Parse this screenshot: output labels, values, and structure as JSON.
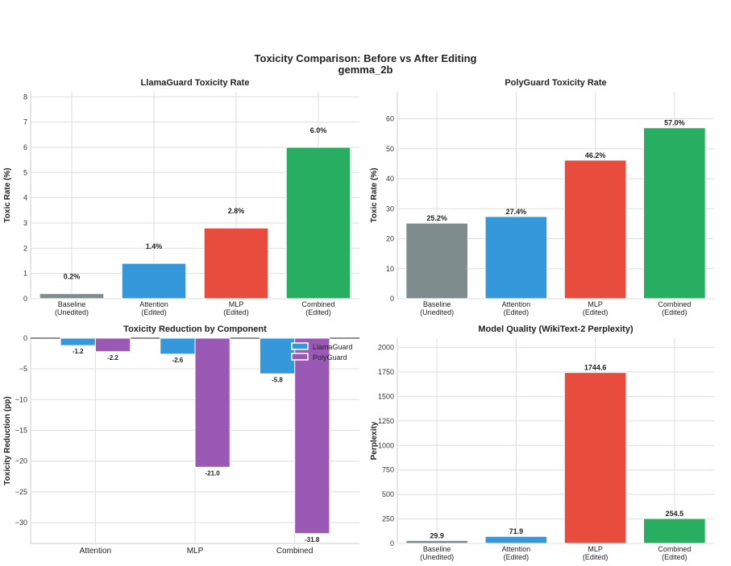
{
  "figure": {
    "title_line1": "Toxicity Comparison: Before vs After Editing",
    "title_line2": "gemma_2b"
  },
  "colors": {
    "baseline": "#7f8c8d",
    "attention": "#3498db",
    "mlp": "#e74c3c",
    "combined": "#27ae60",
    "llamaguard": "#3498db",
    "polyguard": "#9b59b6"
  },
  "chart_data": [
    {
      "id": "llamaguard",
      "type": "bar",
      "title": "LlamaGuard Toxicity Rate",
      "xlabel": "",
      "ylabel": "Toxic Rate (%)",
      "categories": [
        "Baseline\n(Unedited)",
        "Attention\n(Edited)",
        "MLP\n(Edited)",
        "Combined\n(Edited)"
      ],
      "values": [
        0.2,
        1.4,
        2.8,
        6.0
      ],
      "value_labels": [
        "0.2%",
        "1.4%",
        "2.8%",
        "6.0%"
      ],
      "bar_colors": [
        "#7f8c8d",
        "#3498db",
        "#e74c3c",
        "#27ae60"
      ],
      "ylim": [
        0,
        8.2
      ],
      "yticks": [
        0,
        1,
        2,
        3,
        4,
        5,
        6,
        7,
        8
      ],
      "grid": true
    },
    {
      "id": "polyguard",
      "type": "bar",
      "title": "PolyGuard Toxicity Rate",
      "xlabel": "",
      "ylabel": "Toxic Rate (%)",
      "categories": [
        "Baseline\n(Unedited)",
        "Attention\n(Edited)",
        "MLP\n(Edited)",
        "Combined\n(Edited)"
      ],
      "values": [
        25.2,
        27.4,
        46.2,
        57.0
      ],
      "value_labels": [
        "25.2%",
        "27.4%",
        "46.2%",
        "57.0%"
      ],
      "bar_colors": [
        "#7f8c8d",
        "#3498db",
        "#e74c3c",
        "#27ae60"
      ],
      "ylim": [
        0,
        69
      ],
      "yticks": [
        0,
        10,
        20,
        30,
        40,
        50,
        60
      ],
      "grid": true
    },
    {
      "id": "reduction",
      "type": "bar",
      "title": "Toxicity Reduction by Component",
      "xlabel": "",
      "ylabel": "Toxicity Reduction (pp)",
      "categories": [
        "Attention",
        "MLP",
        "Combined"
      ],
      "series": [
        {
          "name": "LlamaGuard",
          "values": [
            -1.2,
            -2.6,
            -5.8
          ],
          "value_labels": [
            "-1.2",
            "-2.6",
            "-5.8"
          ],
          "color": "#3498db"
        },
        {
          "name": "PolyGuard",
          "values": [
            -2.2,
            -21.0,
            -31.8
          ],
          "value_labels": [
            "-2.2",
            "-21.0",
            "-31.8"
          ],
          "color": "#9b59b6"
        }
      ],
      "ylim": [
        -33.4,
        0
      ],
      "yticks": [
        0,
        -5,
        -10,
        -15,
        -20,
        -25,
        -30
      ],
      "ytick_labels": [
        "0",
        "−5",
        "−10",
        "−15",
        "−20",
        "−25",
        "−30"
      ],
      "legend_position": "top-right",
      "grid": true
    },
    {
      "id": "perplexity",
      "type": "bar",
      "title": "Model Quality (WikiText-2 Perplexity)",
      "xlabel": "",
      "ylabel": "Perplexity",
      "categories": [
        "Baseline\n(Unedited)",
        "Attention\n(Edited)",
        "MLP\n(Edited)",
        "Combined\n(Edited)"
      ],
      "values": [
        29.9,
        71.9,
        1744.6,
        254.5
      ],
      "value_labels": [
        "29.9",
        "71.9",
        "1744.6",
        "254.5"
      ],
      "bar_colors": [
        "#7f8c8d",
        "#3498db",
        "#e74c3c",
        "#27ae60"
      ],
      "ylim": [
        0,
        2095
      ],
      "yticks": [
        0,
        250,
        500,
        750,
        1000,
        1250,
        1500,
        1750,
        2000
      ],
      "grid": true
    }
  ]
}
